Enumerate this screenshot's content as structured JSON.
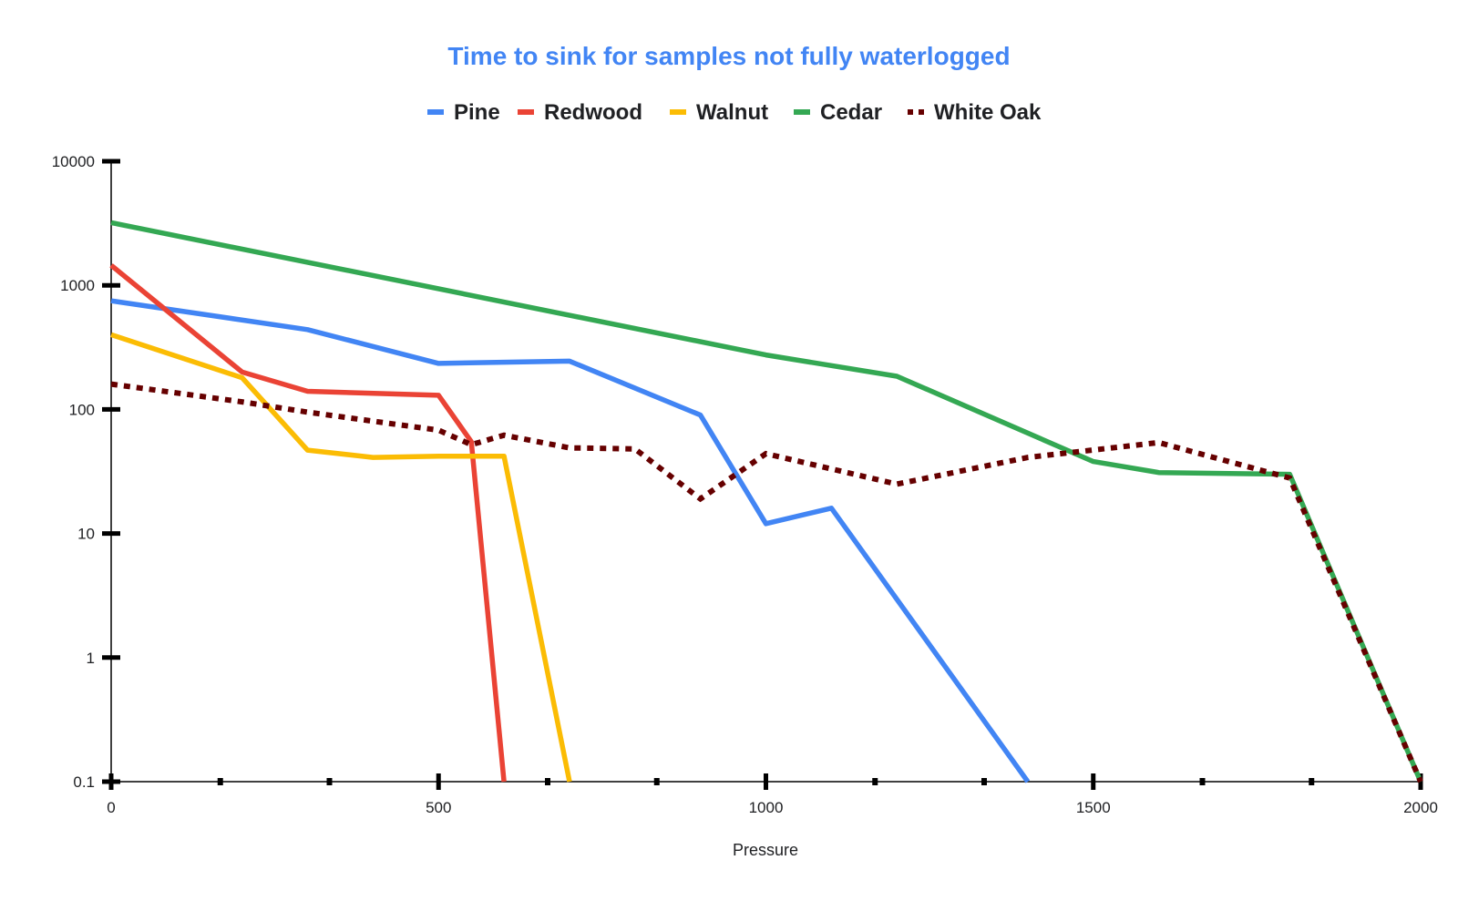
{
  "chart_data": {
    "type": "line",
    "title": "Time to sink for samples not fully waterlogged",
    "xlabel": "Pressure",
    "ylabel": "",
    "y_scale": "log",
    "xlim": [
      0,
      2000
    ],
    "ylim": [
      0.1,
      10000
    ],
    "x_ticks": [
      0,
      500,
      1000,
      1500,
      2000
    ],
    "x_tick_labels": [
      "0",
      "500",
      "1000",
      "1500",
      "2000"
    ],
    "y_ticks": [
      0.1,
      1,
      10,
      100,
      1000,
      10000
    ],
    "y_tick_labels": [
      "0.1",
      "1",
      "10",
      "100",
      "1000",
      "10000"
    ],
    "grid": false,
    "legend_position": "top",
    "title_color": "#4285F4",
    "series": [
      {
        "name": "Pine",
        "color": "#4285F4",
        "dash": "solid",
        "points": [
          [
            0,
            750
          ],
          [
            300,
            440
          ],
          [
            500,
            235
          ],
          [
            700,
            245
          ],
          [
            900,
            90
          ],
          [
            1000,
            12
          ],
          [
            1100,
            16
          ],
          [
            1400,
            0.1
          ]
        ]
      },
      {
        "name": "Redwood",
        "color": "#EA4335",
        "dash": "solid",
        "points": [
          [
            0,
            1450
          ],
          [
            200,
            200
          ],
          [
            300,
            140
          ],
          [
            500,
            130
          ],
          [
            550,
            55
          ],
          [
            600,
            0.1
          ]
        ]
      },
      {
        "name": "Walnut",
        "color": "#FBBC04",
        "dash": "solid",
        "points": [
          [
            0,
            400
          ],
          [
            200,
            180
          ],
          [
            300,
            47
          ],
          [
            400,
            41
          ],
          [
            500,
            42
          ],
          [
            600,
            42
          ],
          [
            700,
            0.1
          ]
        ]
      },
      {
        "name": "Cedar",
        "color": "#34A853",
        "dash": "solid",
        "points": [
          [
            0,
            3200
          ],
          [
            1000,
            275
          ],
          [
            1200,
            185
          ],
          [
            1500,
            38
          ],
          [
            1600,
            31
          ],
          [
            1800,
            30
          ],
          [
            2000,
            0.1
          ]
        ]
      },
      {
        "name": "White Oak",
        "color": "#660000",
        "dash": "dotted",
        "points": [
          [
            0,
            160
          ],
          [
            200,
            115
          ],
          [
            300,
            95
          ],
          [
            500,
            68
          ],
          [
            550,
            52
          ],
          [
            600,
            62
          ],
          [
            700,
            49
          ],
          [
            800,
            48
          ],
          [
            900,
            19
          ],
          [
            1000,
            44
          ],
          [
            1200,
            25
          ],
          [
            1400,
            41
          ],
          [
            1600,
            54
          ],
          [
            1800,
            28
          ],
          [
            2000,
            0.1
          ]
        ]
      }
    ]
  }
}
